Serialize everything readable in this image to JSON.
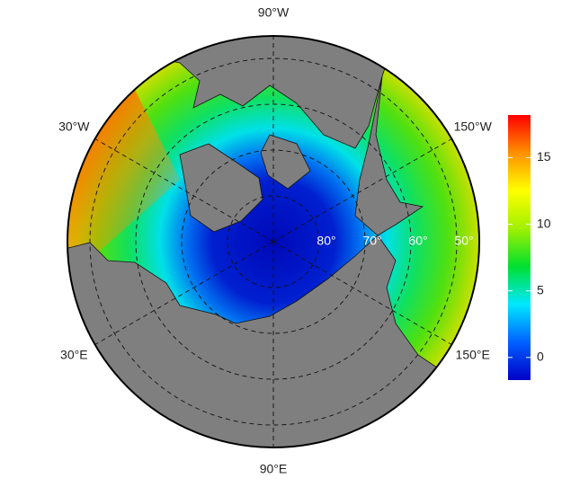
{
  "map": {
    "longitude_labels": [
      {
        "value": -90,
        "label": "90°W"
      },
      {
        "value": -30,
        "label": "30°W"
      },
      {
        "value": -150,
        "label": "150°W"
      },
      {
        "value": 30,
        "label": "30°E"
      },
      {
        "value": 150,
        "label": "150°E"
      },
      {
        "value": 90,
        "label": "90°E"
      }
    ],
    "latitude_labels": [
      {
        "value": 80,
        "label": "80°"
      },
      {
        "value": 70,
        "label": "70°"
      },
      {
        "value": 60,
        "label": "60°"
      },
      {
        "value": 50,
        "label": "50°"
      }
    ],
    "colorbar": {
      "range": [
        -1.7,
        18.2
      ],
      "ticks": [
        0,
        5,
        10,
        15
      ],
      "colors": [
        "#0000c8",
        "#0060ff",
        "#00e8ff",
        "#00e030",
        "#a0f000",
        "#ffff00",
        "#ff9000",
        "#ff0000"
      ]
    }
  }
}
